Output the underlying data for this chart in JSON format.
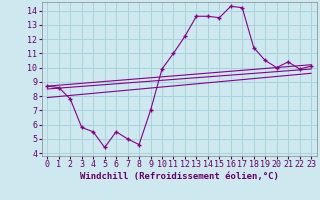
{
  "bg_color": "#cde8ee",
  "grid_color": "#a8d4db",
  "line_color": "#880088",
  "marker_color": "#880088",
  "xlabel": "Windchill (Refroidissement éolien,°C)",
  "xlabel_fontsize": 6.5,
  "tick_fontsize": 6.0,
  "ylim": [
    3.8,
    14.6
  ],
  "xlim": [
    -0.5,
    23.5
  ],
  "yticks": [
    4,
    5,
    6,
    7,
    8,
    9,
    10,
    11,
    12,
    13,
    14
  ],
  "xticks": [
    0,
    1,
    2,
    3,
    4,
    5,
    6,
    7,
    8,
    9,
    10,
    11,
    12,
    13,
    14,
    15,
    16,
    17,
    18,
    19,
    20,
    21,
    22,
    23
  ],
  "line1_x": [
    0,
    1,
    2,
    3,
    4,
    5,
    6,
    7,
    8,
    9,
    10,
    11,
    12,
    13,
    14,
    15,
    16,
    17,
    18,
    19,
    20,
    21,
    22,
    23
  ],
  "line1_y": [
    8.7,
    8.6,
    7.8,
    5.8,
    5.5,
    4.4,
    5.5,
    5.0,
    4.6,
    7.0,
    9.9,
    11.0,
    12.2,
    13.6,
    13.6,
    13.5,
    14.3,
    14.2,
    11.4,
    10.5,
    10.0,
    10.4,
    9.9,
    10.1
  ],
  "line2_x": [
    0,
    23
  ],
  "line2_y": [
    8.7,
    10.2
  ],
  "line3_x": [
    0,
    23
  ],
  "line3_y": [
    8.5,
    9.9
  ],
  "line4_x": [
    0,
    23
  ],
  "line4_y": [
    7.9,
    9.6
  ]
}
